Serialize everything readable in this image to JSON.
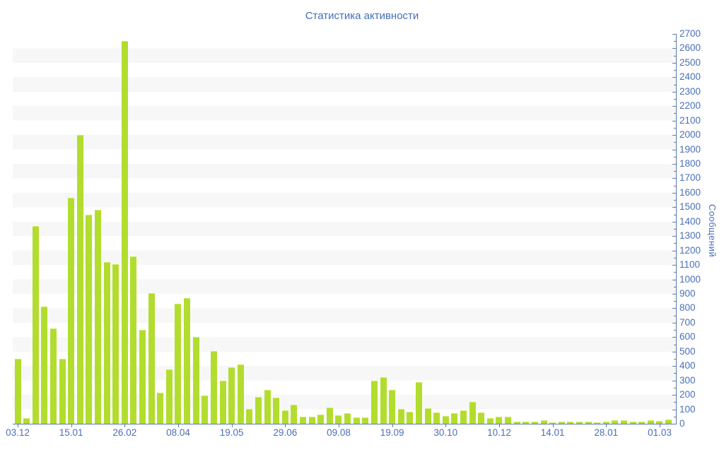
{
  "title": "Статистика активности",
  "colors": {
    "bar": "#b2dd2e",
    "bar_top_highlight": "#d3ec72",
    "stripe": "#f7f7f7",
    "axis": "#5a7ab0",
    "tick_label": "#4a6fb8",
    "title_text": "#4270b8",
    "background": "#ffffff"
  },
  "chart_data": {
    "type": "bar",
    "title": "Статистика активности",
    "xlabel": "",
    "ylabel": "Сообщений",
    "legend": "none",
    "grid": "horizontal-stripes",
    "y_axis_side": "right",
    "ylim": [
      0,
      2700
    ],
    "y_major_step": 100,
    "y_minor_step": 50,
    "y_tick_labels": [
      "0",
      "100",
      "200",
      "300",
      "400",
      "500",
      "600",
      "700",
      "800",
      "900",
      "1000",
      "1100",
      "1200",
      "1300",
      "1400",
      "1500",
      "1600",
      "1700",
      "1800",
      "1900",
      "2000",
      "2100",
      "2200",
      "2300",
      "2400",
      "2500",
      "2600",
      "2700"
    ],
    "x_tick_labels": [
      {
        "index": 0,
        "label": "03.12"
      },
      {
        "index": 6,
        "label": "15.01"
      },
      {
        "index": 12,
        "label": "26.02"
      },
      {
        "index": 18,
        "label": "08.04"
      },
      {
        "index": 24,
        "label": "19.05"
      },
      {
        "index": 30,
        "label": "29.06"
      },
      {
        "index": 36,
        "label": "09.08"
      },
      {
        "index": 42,
        "label": "19.09"
      },
      {
        "index": 48,
        "label": "30.10"
      },
      {
        "index": 54,
        "label": "10.12"
      },
      {
        "index": 60,
        "label": "14.01"
      },
      {
        "index": 66,
        "label": "28.01"
      },
      {
        "index": 72,
        "label": "01.03"
      }
    ],
    "values": [
      450,
      40,
      1370,
      810,
      660,
      450,
      1565,
      2000,
      1450,
      1480,
      1120,
      1105,
      2650,
      1160,
      650,
      905,
      215,
      375,
      830,
      870,
      600,
      195,
      505,
      300,
      390,
      410,
      105,
      185,
      235,
      180,
      95,
      130,
      50,
      50,
      65,
      115,
      60,
      75,
      45,
      45,
      300,
      325,
      235,
      105,
      85,
      290,
      110,
      80,
      55,
      75,
      95,
      150,
      80,
      40,
      50,
      50,
      15,
      15,
      15,
      25,
      12,
      14,
      14,
      13,
      14,
      12,
      16,
      25,
      25,
      16,
      16,
      25,
      20,
      30
    ]
  }
}
